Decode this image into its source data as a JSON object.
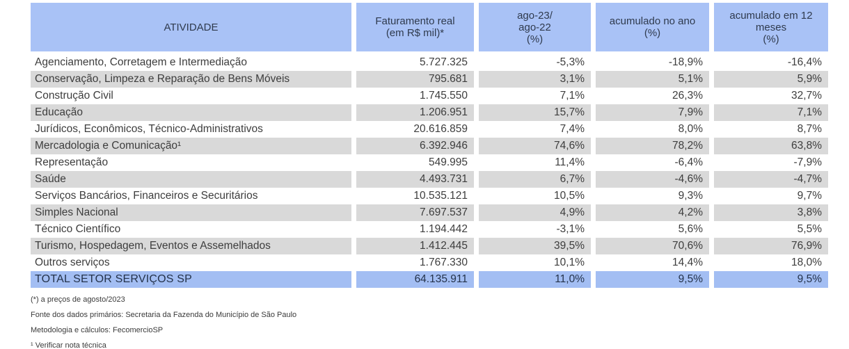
{
  "colors": {
    "header_bg": "#a9c2f6",
    "total_bg": "#a3bef3",
    "row_alt_bg": "#d9d9d9"
  },
  "table": {
    "columns": {
      "atividade": "ATIVIDADE",
      "faturamento": "Faturamento real\n(em R$ mil)*",
      "var_mensal": "ago-23/\nago-22\n(%)",
      "acum_ano": "acumulado no ano\n(%)",
      "acum_12m": "acumulado em 12\nmeses\n(%)"
    },
    "rows": [
      {
        "atividade": "Agenciamento, Corretagem e Intermediação",
        "faturamento": "5.727.325",
        "var_mensal": "-5,3%",
        "acum_ano": "-18,9%",
        "acum_12m": "-16,4%"
      },
      {
        "atividade": "Conservação, Limpeza e Reparação de Bens Móveis",
        "faturamento": "795.681",
        "var_mensal": "3,1%",
        "acum_ano": "5,1%",
        "acum_12m": "5,9%"
      },
      {
        "atividade": "Construção Civil",
        "faturamento": "1.745.550",
        "var_mensal": "7,1%",
        "acum_ano": "26,3%",
        "acum_12m": "32,7%"
      },
      {
        "atividade": "Educação",
        "faturamento": "1.206.951",
        "var_mensal": "15,7%",
        "acum_ano": "7,9%",
        "acum_12m": "7,1%"
      },
      {
        "atividade": "Jurídicos, Econômicos, Técnico-Administrativos",
        "faturamento": "20.616.859",
        "var_mensal": "7,4%",
        "acum_ano": "8,0%",
        "acum_12m": "8,7%"
      },
      {
        "atividade": "Mercadologia  e Comunicação¹",
        "faturamento": "6.392.946",
        "var_mensal": "74,6%",
        "acum_ano": "78,2%",
        "acum_12m": "63,8%"
      },
      {
        "atividade": "Representação",
        "faturamento": "549.995",
        "var_mensal": "11,4%",
        "acum_ano": "-6,4%",
        "acum_12m": "-7,9%"
      },
      {
        "atividade": "Saúde",
        "faturamento": "4.493.731",
        "var_mensal": "6,7%",
        "acum_ano": "-4,6%",
        "acum_12m": "-4,7%"
      },
      {
        "atividade": "Serviços Bancários, Financeiros e Securitários",
        "faturamento": "10.535.121",
        "var_mensal": "10,5%",
        "acum_ano": "9,3%",
        "acum_12m": "9,7%"
      },
      {
        "atividade": "Simples Nacional",
        "faturamento": "7.697.537",
        "var_mensal": "4,9%",
        "acum_ano": "4,2%",
        "acum_12m": "3,8%"
      },
      {
        "atividade": "Técnico Científico",
        "faturamento": "1.194.442",
        "var_mensal": "-3,1%",
        "acum_ano": "5,6%",
        "acum_12m": "5,5%"
      },
      {
        "atividade": "Turismo, Hospedagem, Eventos e Assemelhados",
        "faturamento": "1.412.445",
        "var_mensal": "39,5%",
        "acum_ano": "70,6%",
        "acum_12m": "76,9%"
      },
      {
        "atividade": "Outros serviços",
        "faturamento": "1.767.330",
        "var_mensal": "10,1%",
        "acum_ano": "14,4%",
        "acum_12m": "18,0%"
      }
    ],
    "total": {
      "atividade": "TOTAL SETOR SERVIÇOS SP",
      "faturamento": "64.135.911",
      "var_mensal": "11,0%",
      "acum_ano": "9,5%",
      "acum_12m": "9,5%"
    }
  },
  "footnotes": [
    "(*) a preços de agosto/2023",
    "Fonte dos dados primários: Secretaria da Fazenda do Município de São Paulo",
    "Metodologia e cálculos: FecomercioSP",
    "¹ Verificar nota técnica"
  ]
}
